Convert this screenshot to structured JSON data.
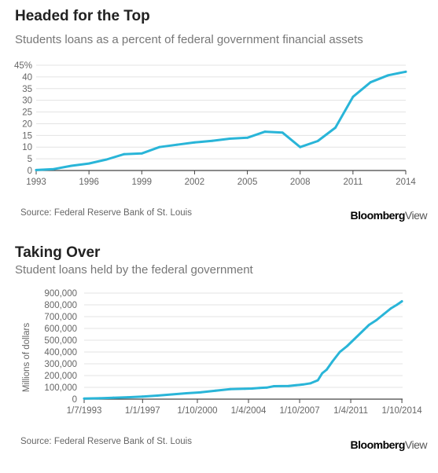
{
  "colors": {
    "line": "#29b5d8",
    "axis": "#444444",
    "grid": "#e3e3e3",
    "text": "#666666"
  },
  "chart_data": [
    {
      "type": "line",
      "title": "Headed for the Top",
      "subtitle": "Students loans as a percent of federal government financial assets",
      "source": "Source: Federal Reserve Bank of St. Louis",
      "brand": {
        "bold": "Bloomberg",
        "light": "View"
      },
      "xlim": [
        1993,
        2014
      ],
      "ylim": [
        0,
        45
      ],
      "grid": true,
      "x_ticks": [
        1993,
        1996,
        1999,
        2002,
        2005,
        2008,
        2011,
        2014
      ],
      "y_ticks": [
        {
          "value": 0,
          "label": "0"
        },
        {
          "value": 5,
          "label": "5"
        },
        {
          "value": 10,
          "label": "10"
        },
        {
          "value": 15,
          "label": "15"
        },
        {
          "value": 20,
          "label": "20"
        },
        {
          "value": 25,
          "label": "25"
        },
        {
          "value": 30,
          "label": "30"
        },
        {
          "value": 35,
          "label": "35"
        },
        {
          "value": 40,
          "label": "40"
        },
        {
          "value": 45,
          "label": "45%"
        }
      ],
      "series": [
        {
          "x": [
            1993,
            1994,
            1995,
            1996,
            1997,
            1998,
            1999,
            2000,
            2001,
            2002,
            2003,
            2004,
            2005,
            2006,
            2007,
            2008,
            2009,
            2010,
            2011,
            2012,
            2013,
            2014
          ],
          "values": [
            0.2,
            0.6,
            2,
            3,
            4.7,
            7,
            7.3,
            10,
            11,
            12,
            12.7,
            13.6,
            14,
            16.6,
            16.2,
            10,
            12.6,
            18.3,
            31.5,
            37.7,
            40.7,
            42.2
          ]
        }
      ]
    },
    {
      "type": "line",
      "title": "Taking Over",
      "subtitle": "Student loans held by the federal government",
      "ylabel": "Millions of dollars",
      "source": "Source: Federal Reserve Bank of St. Louis",
      "brand": {
        "bold": "Bloomberg",
        "light": "View"
      },
      "xlim": [
        1993.0,
        2014.8
      ],
      "ylim": [
        0,
        900000
      ],
      "grid": true,
      "x_ticks": [
        {
          "value": 1993.0,
          "label": "1/7/1993"
        },
        {
          "value": 1997.0,
          "label": "1/1/1997"
        },
        {
          "value": 2000.75,
          "label": "1/10/2000"
        },
        {
          "value": 2004.25,
          "label": "1/4/2004"
        },
        {
          "value": 2007.75,
          "label": "1/10/2007"
        },
        {
          "value": 2011.25,
          "label": "1/4/2011"
        },
        {
          "value": 2014.75,
          "label": "1/10/2014"
        }
      ],
      "y_ticks": [
        {
          "value": 0,
          "label": "0"
        },
        {
          "value": 100000,
          "label": "100,000"
        },
        {
          "value": 200000,
          "label": "200,000"
        },
        {
          "value": 300000,
          "label": "300,000"
        },
        {
          "value": 400000,
          "label": "400,000"
        },
        {
          "value": 500000,
          "label": "500,000"
        },
        {
          "value": 600000,
          "label": "600,000"
        },
        {
          "value": 700000,
          "label": "700,000"
        },
        {
          "value": 800000,
          "label": "800,000"
        },
        {
          "value": 900000,
          "label": "900,000"
        }
      ],
      "series": [
        {
          "x": [
            1993.0,
            1994.0,
            1995.0,
            1996.0,
            1997.0,
            1998.0,
            1999.0,
            2000.0,
            2001.0,
            2002.0,
            2003.0,
            2004.0,
            2004.5,
            2005.0,
            2005.5,
            2006.0,
            2007.0,
            2007.5,
            2008.0,
            2008.5,
            2009.0,
            2009.3,
            2009.6,
            2010.0,
            2010.5,
            2011.0,
            2011.5,
            2012.0,
            2012.5,
            2013.0,
            2013.5,
            2014.0,
            2014.4,
            2014.75
          ],
          "values": [
            5000,
            7000,
            12000,
            16000,
            22000,
            30000,
            40000,
            50000,
            58000,
            72000,
            85000,
            88000,
            90000,
            95000,
            98000,
            110000,
            112000,
            118000,
            125000,
            135000,
            160000,
            220000,
            250000,
            320000,
            400000,
            450000,
            510000,
            570000,
            630000,
            670000,
            720000,
            770000,
            800000,
            830000
          ]
        }
      ]
    }
  ]
}
